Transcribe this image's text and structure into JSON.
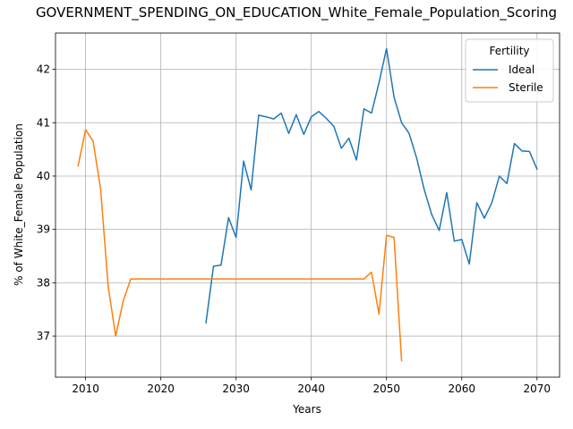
{
  "chart_data": {
    "type": "line",
    "title": "GOVERNMENT_SPENDING_ON_EDUCATION_White_Female_Population_Scoring",
    "xlabel": "Years",
    "ylabel": "% of White_Female Population",
    "xlim": [
      2006,
      2073
    ],
    "ylim": [
      36.23,
      42.68
    ],
    "xticks": [
      2010,
      2020,
      2030,
      2040,
      2050,
      2060,
      2070
    ],
    "yticks": [
      37,
      38,
      39,
      40,
      41,
      42
    ],
    "grid": true,
    "legend": {
      "title": "Fertility",
      "position": "top-right"
    },
    "series": [
      {
        "name": "Ideal",
        "color": "#1f77b4",
        "x": [
          2026,
          2027,
          2028,
          2029,
          2030,
          2031,
          2032,
          2033,
          2034,
          2035,
          2036,
          2037,
          2038,
          2039,
          2040,
          2041,
          2042,
          2043,
          2044,
          2045,
          2046,
          2047,
          2048,
          2049,
          2050,
          2051,
          2052,
          2053,
          2054,
          2055,
          2056,
          2057,
          2058,
          2059,
          2060,
          2061,
          2062,
          2063,
          2064,
          2065,
          2066,
          2067,
          2068,
          2069,
          2070
        ],
        "y": [
          37.25,
          38.31,
          38.33,
          39.22,
          38.85,
          40.28,
          39.74,
          41.14,
          41.11,
          41.07,
          41.18,
          40.8,
          41.15,
          40.78,
          41.11,
          41.21,
          41.08,
          40.93,
          40.52,
          40.71,
          40.3,
          41.26,
          41.18,
          41.75,
          42.39,
          41.48,
          41.0,
          40.8,
          40.34,
          39.75,
          39.28,
          38.98,
          39.69,
          38.78,
          38.81,
          38.35,
          39.5,
          39.21,
          39.5,
          40.0,
          39.86,
          40.61,
          40.47,
          40.46,
          40.13
        ]
      },
      {
        "name": "Sterile",
        "color": "#ff7f0e",
        "x": [
          2009,
          2010,
          2011,
          2012,
          2013,
          2014,
          2015,
          2016,
          2017,
          2018,
          2019,
          2020,
          2021,
          2022,
          2023,
          2024,
          2025,
          2026,
          2027,
          2028,
          2029,
          2030,
          2031,
          2032,
          2033,
          2034,
          2035,
          2036,
          2037,
          2038,
          2039,
          2040,
          2041,
          2042,
          2043,
          2044,
          2045,
          2046,
          2047,
          2048,
          2049,
          2050,
          2051,
          2052
        ],
        "y": [
          40.19,
          40.87,
          40.65,
          39.75,
          37.93,
          37.0,
          37.66,
          38.07,
          38.07,
          38.07,
          38.07,
          38.07,
          38.07,
          38.07,
          38.07,
          38.07,
          38.07,
          38.07,
          38.07,
          38.07,
          38.07,
          38.07,
          38.07,
          38.07,
          38.07,
          38.07,
          38.07,
          38.07,
          38.07,
          38.07,
          38.07,
          38.07,
          38.07,
          38.07,
          38.07,
          38.07,
          38.07,
          38.07,
          38.07,
          38.2,
          37.41,
          38.89,
          38.85,
          36.54
        ]
      }
    ]
  }
}
